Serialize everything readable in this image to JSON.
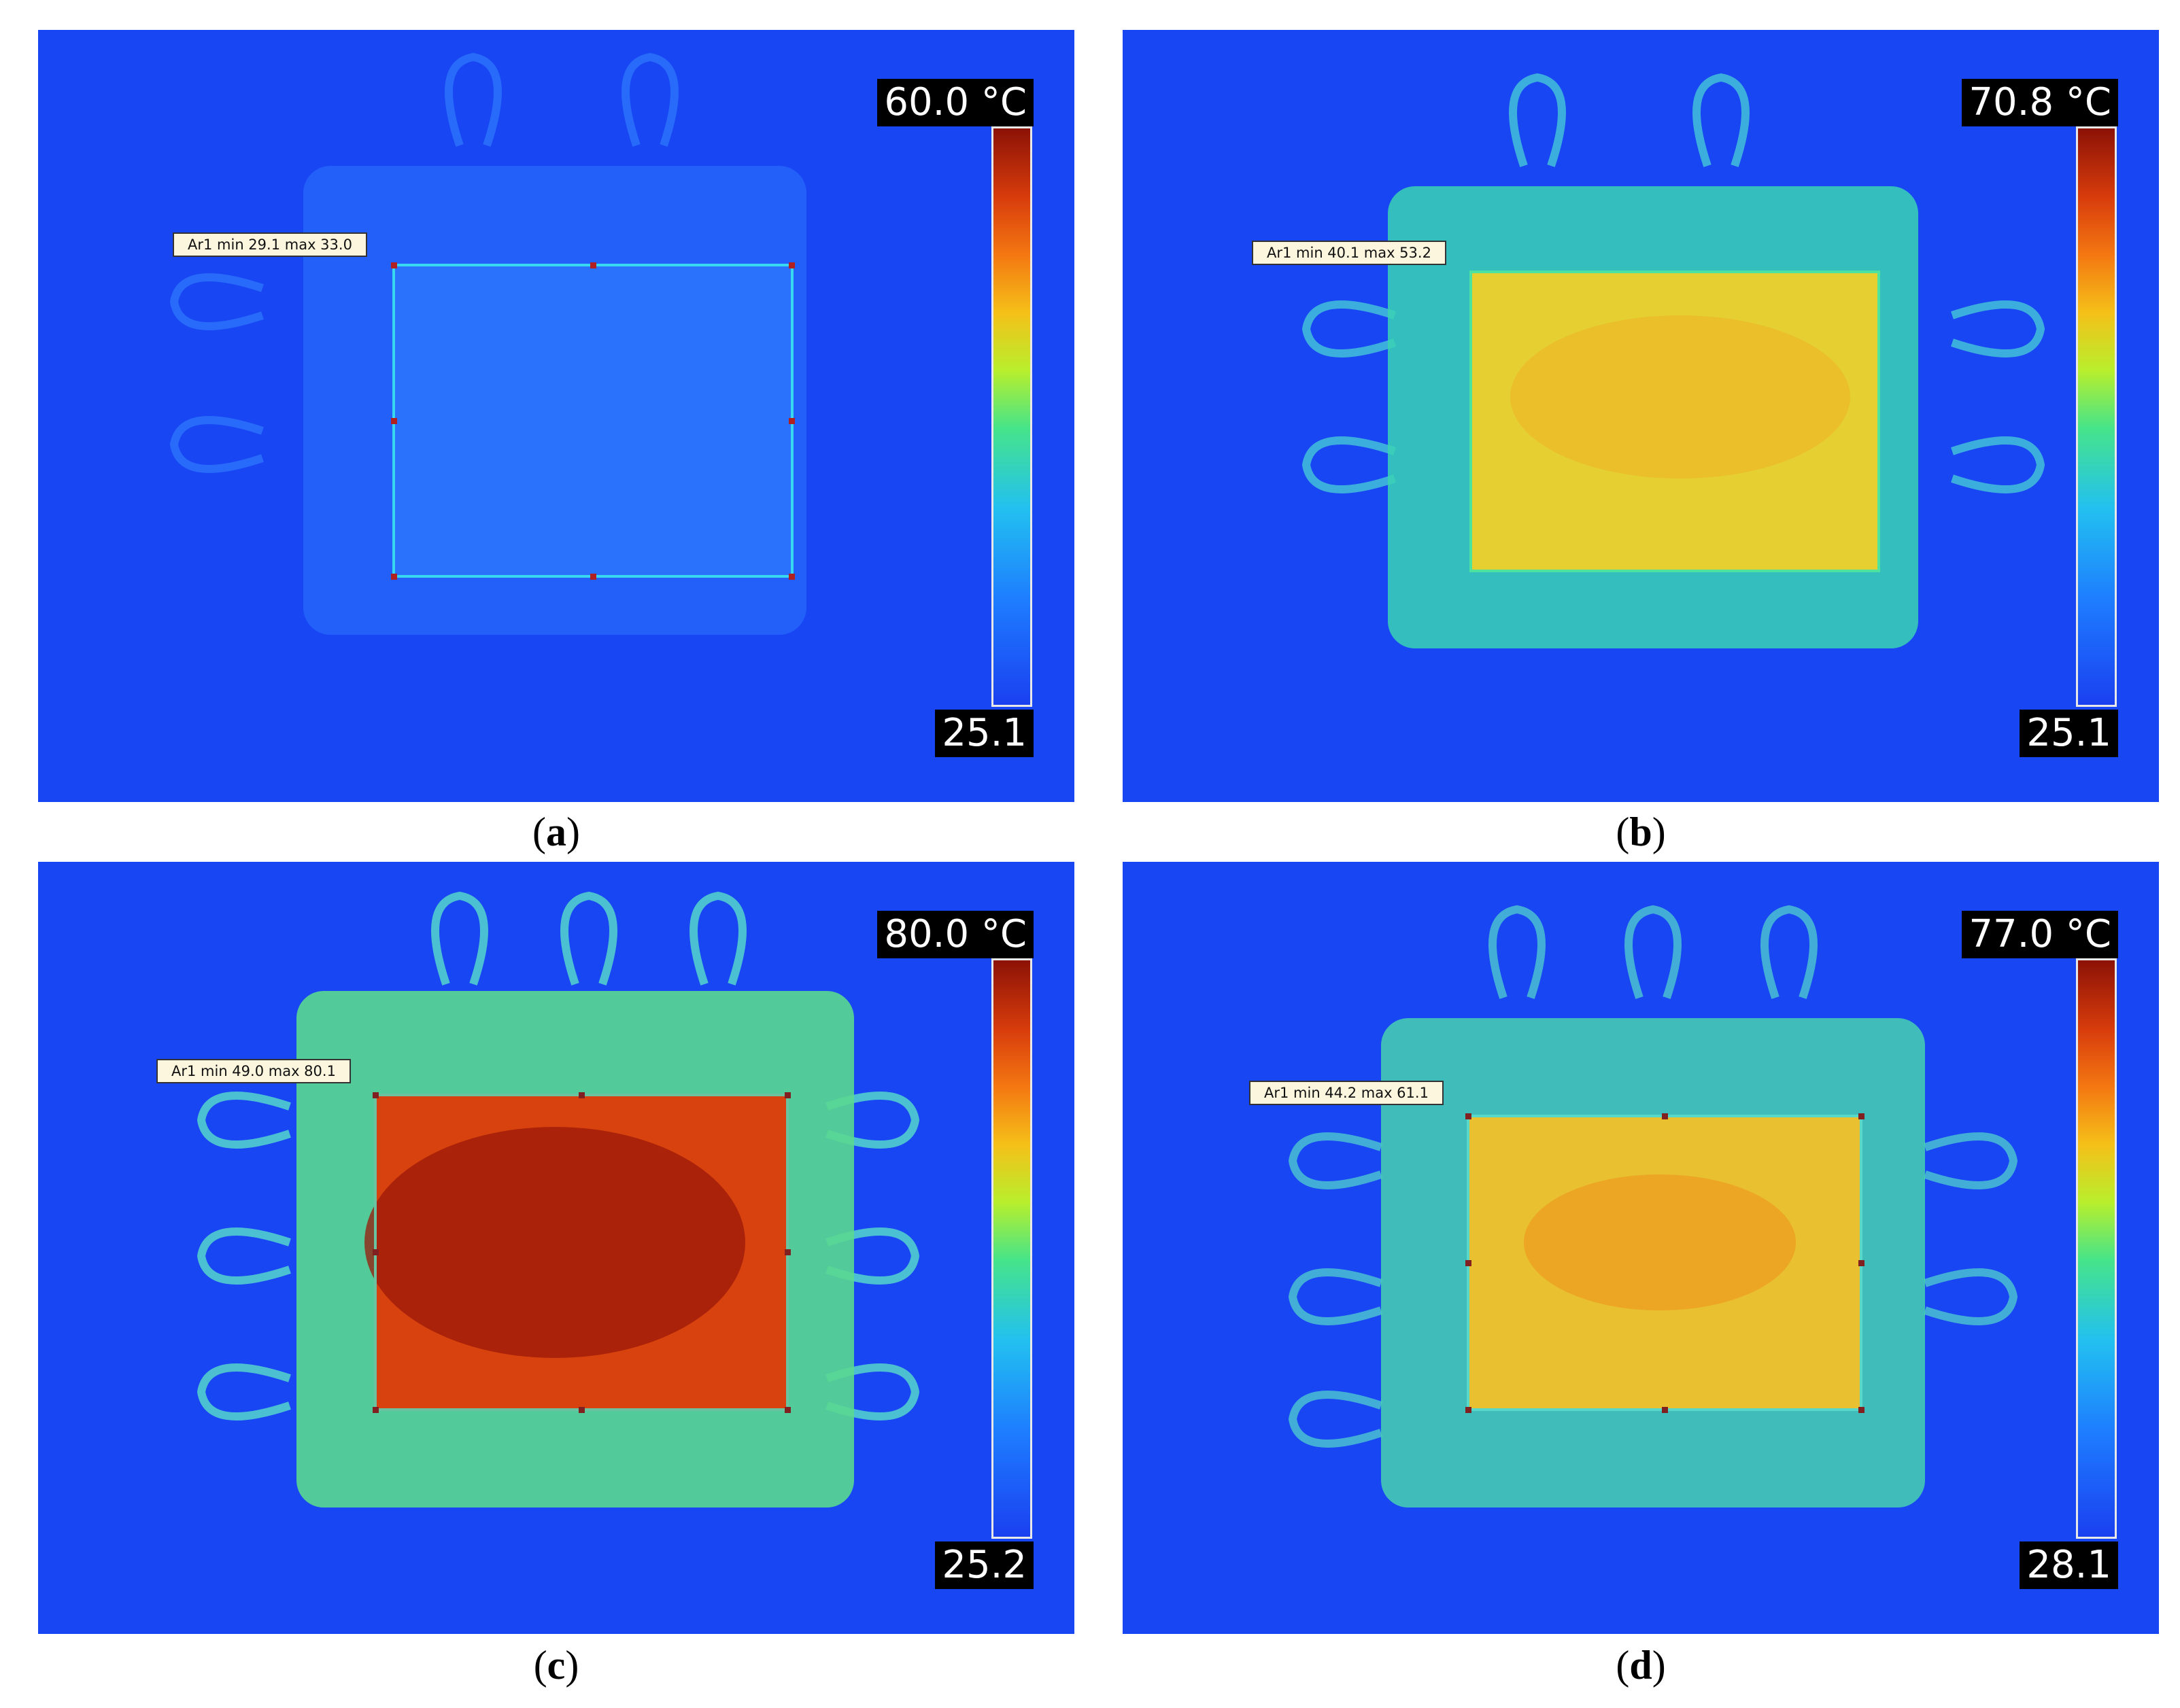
{
  "panels": [
    {
      "id": "a",
      "caption": "a",
      "scale_max": "60.0 °C",
      "scale_min": "25.1",
      "roi_label": "Ar1 min 29.1 max 33.0",
      "roi_min": 29.1,
      "roi_max": 33.0
    },
    {
      "id": "b",
      "caption": "b",
      "scale_max": "70.8 °C",
      "scale_min": "25.1",
      "roi_label": "Ar1 min 40.1 max 53.2",
      "roi_min": 40.1,
      "roi_max": 53.2
    },
    {
      "id": "c",
      "caption": "c",
      "scale_max": "80.0 °C",
      "scale_min": "25.2",
      "roi_label": "Ar1 min 49.0 max 80.1",
      "roi_min": 49.0,
      "roi_max": 80.1
    },
    {
      "id": "d",
      "caption": "d",
      "scale_max": "77.0 °C",
      "scale_min": "28.1",
      "roi_label": "Ar1 min 44.2 max 61.1",
      "roi_min": 44.2,
      "roi_max": 61.1
    }
  ],
  "colors": {
    "background": "#1846f3",
    "roi_outline": "#38d8f0",
    "handle": "#b02020"
  }
}
